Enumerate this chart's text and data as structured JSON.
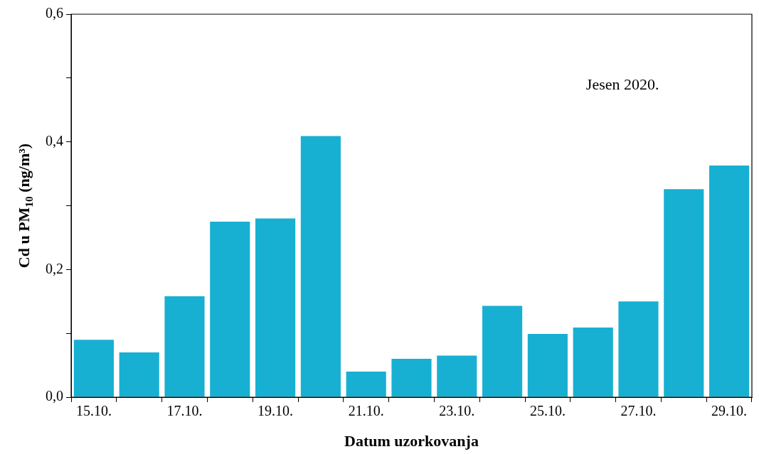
{
  "chart_data": {
    "type": "bar",
    "categories": [
      "15.10.",
      null,
      "17.10.",
      null,
      "19.10.",
      null,
      "21.10.",
      null,
      "23.10.",
      null,
      "25.10.",
      null,
      "27.10.",
      null,
      "29.10."
    ],
    "values": [
      0.09,
      0.07,
      0.158,
      0.275,
      0.28,
      0.409,
      0.04,
      0.06,
      0.065,
      0.143,
      0.099,
      0.109,
      0.15,
      0.326,
      0.363
    ],
    "color": "#17b0d2",
    "xlabel": "Datum uzorkovanja",
    "ylabel": "Cd u PM$_{10}$ (ng/m³)",
    "ylim": [
      0,
      0.6
    ],
    "yticks": [
      {
        "value": 0,
        "label": "0,0"
      },
      {
        "value": 0.1,
        "label": null
      },
      {
        "value": 0.2,
        "label": "0,2"
      },
      {
        "value": 0.3,
        "label": null
      },
      {
        "value": 0.4,
        "label": "0,4"
      },
      {
        "value": 0.5,
        "label": null
      },
      {
        "value": 0.6,
        "label": "0,6"
      }
    ],
    "annotations": [
      "Jesen 2020."
    ],
    "grid": false,
    "legend": false
  }
}
